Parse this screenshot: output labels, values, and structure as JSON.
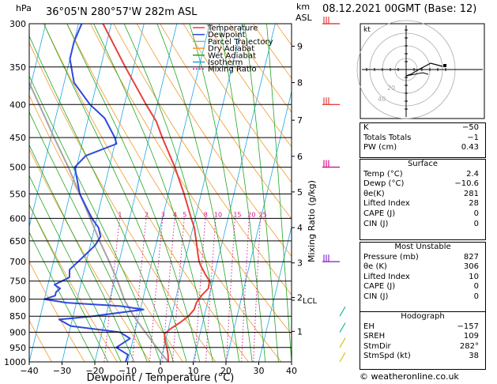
{
  "header": {
    "location": "36°05'N  280°57'W  282m  ASL",
    "date": "08.12.2021  00GMT  (Base: 12)",
    "left_unit": "hPa",
    "right_unit_km": "km",
    "right_unit_asl": "ASL"
  },
  "chart_data": {
    "type": "skew-t",
    "xlabel": "Dewpoint / Temperature (°C)",
    "ylabel_left": "hPa",
    "ylabel_right": "Mixing Ratio (g/kg)",
    "x_ticks": [
      -40,
      -30,
      -20,
      -10,
      0,
      10,
      20,
      30,
      40
    ],
    "x_tick_labels": [
      "−40",
      "−30",
      "−20",
      "−10",
      "0",
      "10",
      "20",
      "30",
      "40"
    ],
    "pressure_levels": [
      300,
      350,
      400,
      450,
      500,
      550,
      600,
      650,
      700,
      750,
      800,
      850,
      900,
      950,
      1000
    ],
    "km_ticks": [
      {
        "label": "9",
        "p": 325
      },
      {
        "label": "8",
        "p": 370
      },
      {
        "label": "7",
        "p": 423
      },
      {
        "label": "6",
        "p": 481
      },
      {
        "label": "5",
        "p": 546
      },
      {
        "label": "4",
        "p": 620
      },
      {
        "label": "3",
        "p": 703
      },
      {
        "label": "2",
        "p": 795
      },
      {
        "label": "1",
        "p": 897
      }
    ],
    "lcl": {
      "label": "LCL",
      "p": 803
    },
    "mixing_ratio_labels": [
      "1",
      "2",
      "3",
      "4",
      "5",
      "8",
      "10",
      "15",
      "20",
      "25"
    ],
    "mixing_ratio_values": [
      1,
      2,
      3,
      4,
      5,
      8,
      10,
      15,
      20,
      25
    ],
    "legend": {
      "position": "top-right",
      "items": [
        {
          "name": "Temperature",
          "color": "#e8413c",
          "style": "solid"
        },
        {
          "name": "Dewpoint",
          "color": "#2f48e0",
          "style": "solid"
        },
        {
          "name": "Parcel Trajectory",
          "color": "#a6a6a6",
          "style": "solid"
        },
        {
          "name": "Dry Adiabat",
          "color": "#f39a2b",
          "style": "solid"
        },
        {
          "name": "Wet Adiabat",
          "color": "#23a622",
          "style": "solid"
        },
        {
          "name": "Isotherm",
          "color": "#1fa7e5",
          "style": "solid"
        },
        {
          "name": "Mixing Ratio",
          "color": "#d4128a",
          "style": "dotted"
        }
      ]
    },
    "series": [
      {
        "name": "Temperature",
        "color": "#e8413c",
        "points": [
          [
            1000,
            2.4
          ],
          [
            975,
            1.8
          ],
          [
            950,
            0.9
          ],
          [
            925,
            -0.3
          ],
          [
            905,
            -0.8
          ],
          [
            890,
            0.5
          ],
          [
            870,
            3.0
          ],
          [
            850,
            5.2
          ],
          [
            830,
            6.4
          ],
          [
            810,
            6.6
          ],
          [
            790,
            7.6
          ],
          [
            770,
            9.2
          ],
          [
            750,
            9.0
          ],
          [
            730,
            7.0
          ],
          [
            710,
            5.2
          ],
          [
            700,
            4.4
          ],
          [
            680,
            3.4
          ],
          [
            650,
            2.0
          ],
          [
            620,
            0.4
          ],
          [
            600,
            -1.2
          ],
          [
            550,
            -5.2
          ],
          [
            500,
            -10.0
          ],
          [
            450,
            -16.0
          ],
          [
            425,
            -19.0
          ],
          [
            400,
            -23.4
          ],
          [
            350,
            -32.5
          ],
          [
            300,
            -42.5
          ]
        ]
      },
      {
        "name": "Dewpoint",
        "color": "#2f48e0",
        "points": [
          [
            1000,
            -10.6
          ],
          [
            975,
            -10.4
          ],
          [
            950,
            -14.5
          ],
          [
            920,
            -11.0
          ],
          [
            900,
            -14.5
          ],
          [
            880,
            -30.0
          ],
          [
            860,
            -34.0
          ],
          [
            850,
            -24.0
          ],
          [
            830,
            -9.0
          ],
          [
            820,
            -16.0
          ],
          [
            810,
            -33.0
          ],
          [
            800,
            -40.0
          ],
          [
            790,
            -37.0
          ],
          [
            780,
            -37.0
          ],
          [
            770,
            -36.0
          ],
          [
            760,
            -38.0
          ],
          [
            750,
            -36.0
          ],
          [
            740,
            -34.0
          ],
          [
            720,
            -34.5
          ],
          [
            700,
            -32.5
          ],
          [
            680,
            -30.5
          ],
          [
            660,
            -28.5
          ],
          [
            640,
            -27.5
          ],
          [
            620,
            -28.8
          ],
          [
            600,
            -31.5
          ],
          [
            550,
            -37.0
          ],
          [
            500,
            -40.5
          ],
          [
            480,
            -38.0
          ],
          [
            460,
            -29.5
          ],
          [
            450,
            -30.5
          ],
          [
            420,
            -35.0
          ],
          [
            400,
            -40.5
          ],
          [
            370,
            -47.0
          ],
          [
            340,
            -50.0
          ],
          [
            320,
            -50.0
          ],
          [
            300,
            -49.0
          ]
        ]
      },
      {
        "name": "Parcel Trajectory",
        "color": "#a6a6a6",
        "points": [
          [
            1000,
            2.4
          ],
          [
            950,
            -2.2
          ],
          [
            900,
            -6.8
          ],
          [
            850,
            -11.5
          ],
          [
            803,
            -15.5
          ],
          [
            750,
            -19.0
          ],
          [
            700,
            -23.0
          ],
          [
            650,
            -27.5
          ],
          [
            600,
            -32.0
          ],
          [
            550,
            -37.0
          ],
          [
            500,
            -42.5
          ],
          [
            450,
            -49.0
          ],
          [
            400,
            -56.0
          ],
          [
            350,
            -64.0
          ],
          [
            300,
            -73.0
          ]
        ]
      }
    ]
  },
  "indices": {
    "rows": [
      {
        "label": "K",
        "value": "−50"
      },
      {
        "label": "Totals Totals",
        "value": "−1"
      },
      {
        "label": "PW (cm)",
        "value": "0.43"
      }
    ]
  },
  "surface": {
    "title": "Surface",
    "rows": [
      {
        "label": "Temp (°C)",
        "value": "2.4"
      },
      {
        "label": "Dewp (°C)",
        "value": "−10.6"
      },
      {
        "label": "θe(K)",
        "value": "281"
      },
      {
        "label": "Lifted Index",
        "value": "28"
      },
      {
        "label": "CAPE (J)",
        "value": "0"
      },
      {
        "label": "CIN (J)",
        "value": "0"
      }
    ]
  },
  "most_unstable": {
    "title": "Most Unstable",
    "rows": [
      {
        "label": "Pressure (mb)",
        "value": "827"
      },
      {
        "label": "θe (K)",
        "value": "306"
      },
      {
        "label": "Lifted Index",
        "value": "10"
      },
      {
        "label": "CAPE (J)",
        "value": "0"
      },
      {
        "label": "CIN (J)",
        "value": "0"
      }
    ]
  },
  "hodograph": {
    "title": "Hodograph",
    "panel_label": "kt",
    "ring_labels": [
      "20",
      "40"
    ],
    "rows": [
      {
        "label": "EH",
        "value": "−157"
      },
      {
        "label": "SREH",
        "value": "109"
      },
      {
        "label": "StmDir",
        "value": "282°"
      },
      {
        "label": "StmSpd (kt)",
        "value": "38"
      }
    ]
  },
  "copyright": "© weatheronline.co.uk"
}
